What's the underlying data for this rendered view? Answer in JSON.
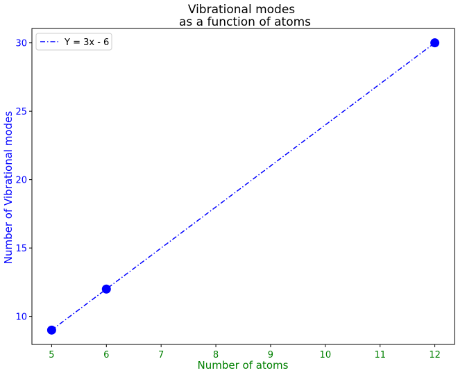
{
  "chart_data": {
    "type": "line",
    "title_lines": [
      "Vibrational modes",
      "as a function of atoms"
    ],
    "xlabel": "Number of atoms",
    "ylabel": "Number of Vibrational modes",
    "xlim": [
      4.64,
      12.36
    ],
    "ylim": [
      7.95,
      31.05
    ],
    "x_ticks": [
      5,
      6,
      7,
      8,
      9,
      10,
      11,
      12
    ],
    "y_ticks": [
      10,
      15,
      20,
      25,
      30
    ],
    "grid": false,
    "legend_position": "top-left",
    "series": [
      {
        "name": "Y = 3x - 6",
        "style": "dash-dot",
        "x": [
          5,
          6,
          12
        ],
        "y": [
          9,
          12,
          30
        ]
      }
    ],
    "points": [
      {
        "x": 5,
        "y": 9
      },
      {
        "x": 6,
        "y": 12
      },
      {
        "x": 12,
        "y": 30
      }
    ],
    "colors": {
      "line": "#0000ff",
      "points": "#0000ff",
      "x_tick_labels": "#008000",
      "x_label": "#008000",
      "y_tick_labels": "#0000ff",
      "y_label": "#0000ff",
      "axes": "#000000"
    }
  }
}
